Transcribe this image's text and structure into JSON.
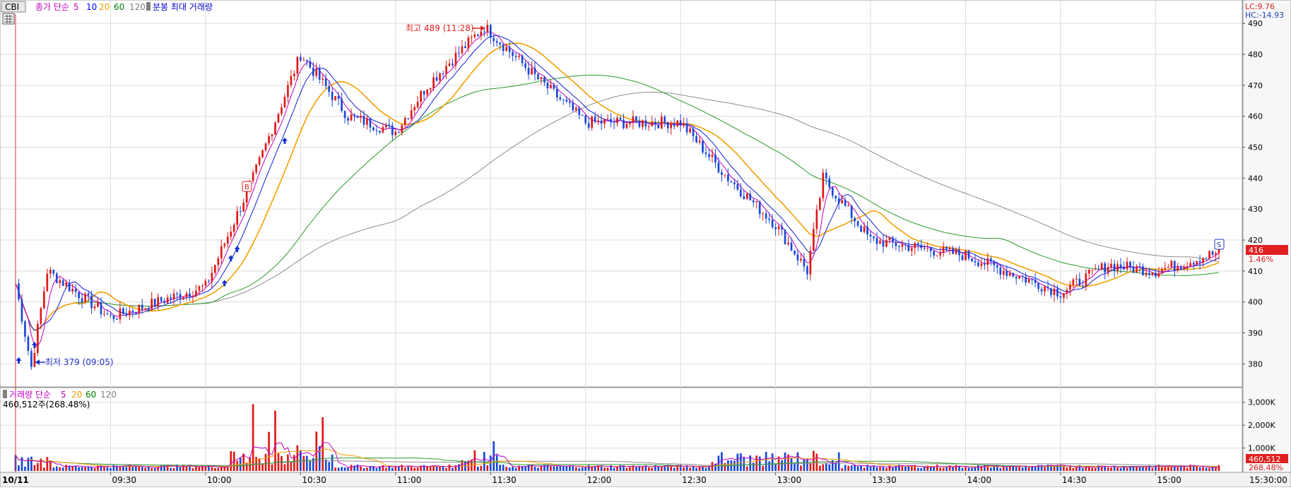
{
  "chart_data": [
    {
      "type": "candlestick",
      "symbol": "CBI",
      "legend": {
        "price_label": "종가 단순",
        "ma_periods": [
          "5",
          "10",
          "20",
          "60",
          "120"
        ],
        "volume_label": "분봉 최대 거래량"
      },
      "ylim": [
        373,
        493
      ],
      "yticks": [
        380,
        390,
        400,
        410,
        420,
        430,
        440,
        450,
        460,
        470,
        480,
        490
      ],
      "x_tick_labels": [
        "09:30",
        "10:00",
        "10:30",
        "11:00",
        "11:30",
        "12:00",
        "12:30",
        "13:00",
        "13:30",
        "14:00",
        "14:30",
        "15:00"
      ],
      "date_label": "10/11",
      "close_time_label": "15:30:00",
      "high_annotation": "최고 489 (11:28)",
      "low_annotation": "최저 379 (09:05)",
      "lc_label": "LC:9.76",
      "hc_label": "HC:-14.93",
      "current_price": "416",
      "current_change": "1.46%",
      "buy_marker": "B",
      "sell_marker": "S",
      "key_points": [
        {
          "time": "09:00",
          "price": 406
        },
        {
          "time": "09:05",
          "price": 379
        },
        {
          "time": "09:10",
          "price": 410
        },
        {
          "time": "09:30",
          "price": 395
        },
        {
          "time": "10:00",
          "price": 405
        },
        {
          "time": "10:15",
          "price": 440
        },
        {
          "time": "10:30",
          "price": 480
        },
        {
          "time": "10:45",
          "price": 460
        },
        {
          "time": "11:00",
          "price": 455
        },
        {
          "time": "11:10",
          "price": 470
        },
        {
          "time": "11:28",
          "price": 489
        },
        {
          "time": "11:45",
          "price": 472
        },
        {
          "time": "12:00",
          "price": 458
        },
        {
          "time": "12:30",
          "price": 458
        },
        {
          "time": "12:45",
          "price": 440
        },
        {
          "time": "13:00",
          "price": 425
        },
        {
          "time": "13:10",
          "price": 410
        },
        {
          "time": "13:15",
          "price": 440
        },
        {
          "time": "13:30",
          "price": 420
        },
        {
          "time": "14:00",
          "price": 415
        },
        {
          "time": "14:30",
          "price": 403
        },
        {
          "time": "14:45",
          "price": 412
        },
        {
          "time": "15:00",
          "price": 410
        },
        {
          "time": "15:20",
          "price": 416
        }
      ]
    },
    {
      "type": "bar",
      "title": "거래량 단순",
      "ma_periods": [
        "5",
        "20",
        "60",
        "120"
      ],
      "volume_info": "460,512주(268.48%)",
      "ylim": [
        0,
        3300
      ],
      "ytick_labels": [
        "1,000K",
        "2,000K",
        "3,000K"
      ],
      "yticks": [
        1000,
        2000,
        3000
      ],
      "current_volume": "460,512",
      "current_ratio": "268.48%"
    }
  ]
}
